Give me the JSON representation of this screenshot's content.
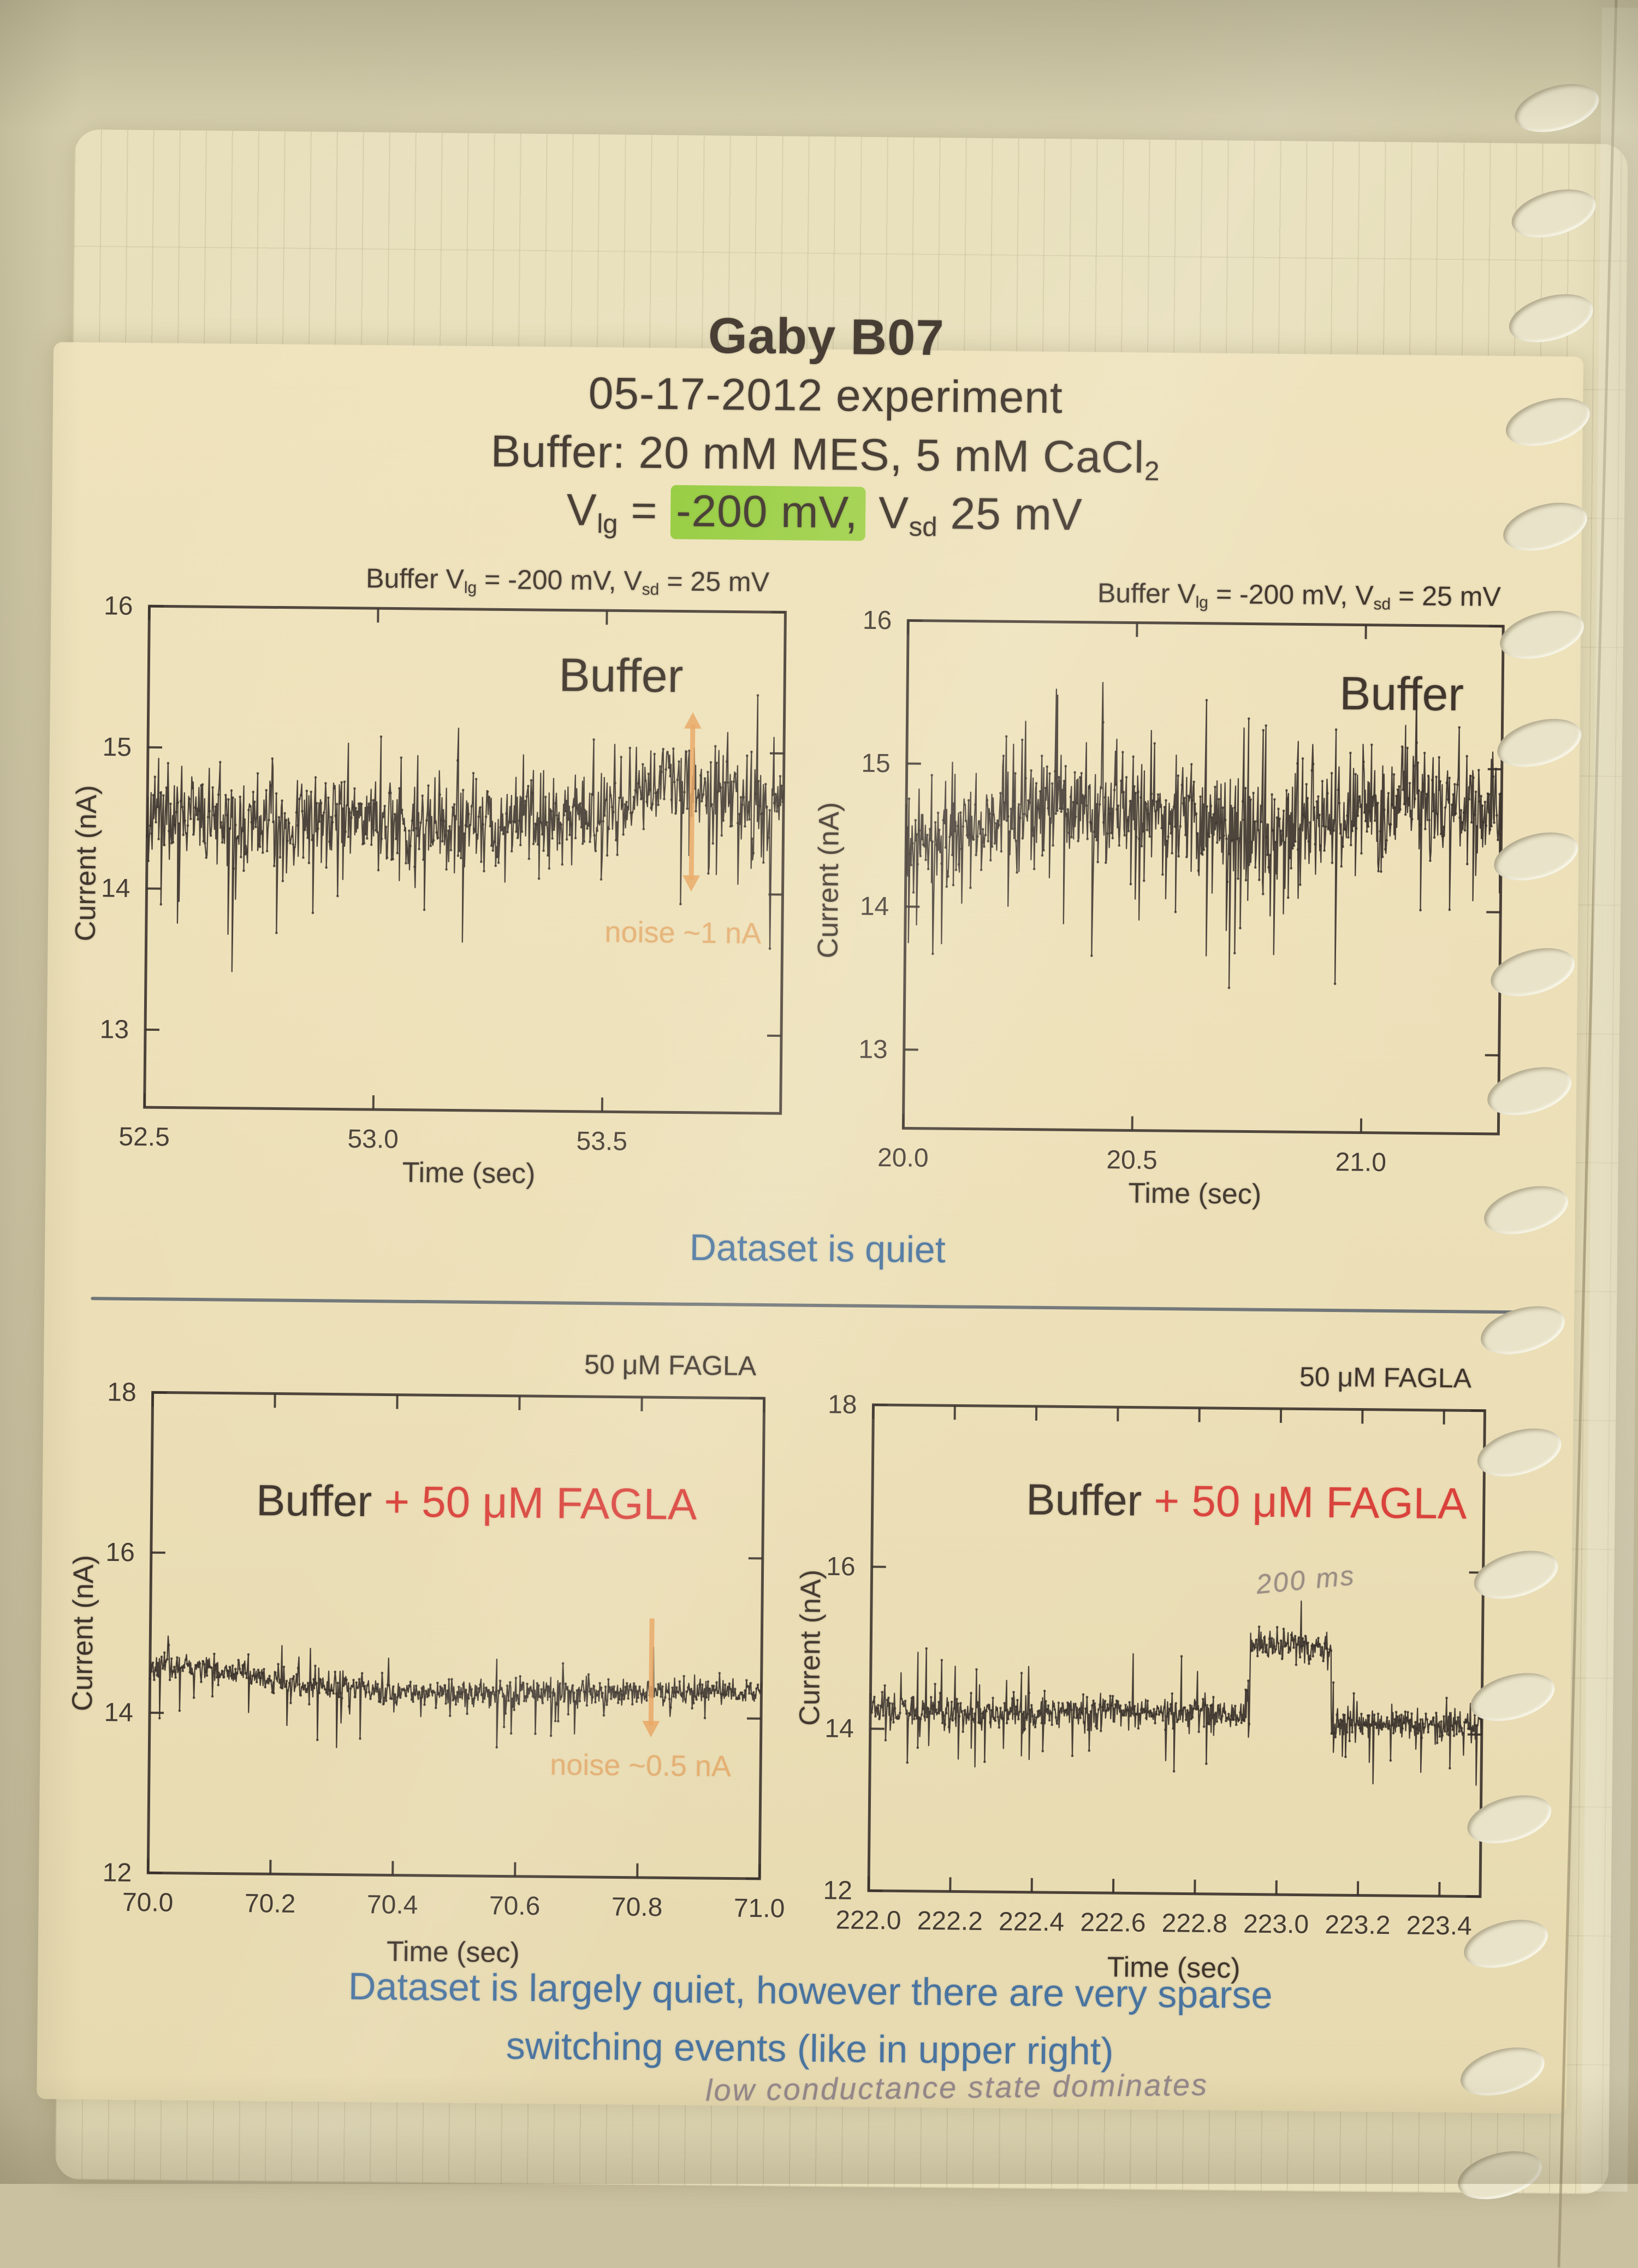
{
  "page": {
    "header": {
      "title": "Gaby B07",
      "line2": "05-17-2012 experiment",
      "line3_prefix": "Buffer: 20 mM MES, 5 mM CaCl",
      "line3_sub": "2",
      "line4": {
        "v1": "V",
        "v1_sub": "lg",
        "eq": " = ",
        "highlight": "-200 mV,",
        "v2": " V",
        "v2_sub": "sd",
        "rest": " 25 mV"
      }
    },
    "middle_note": "Dataset is quiet",
    "bottom_note_line1": "Dataset is largely quiet, however there are very sparse",
    "bottom_note_line2": "switching events (like in upper right)",
    "pencil_note": "low conductance state dominates",
    "colors": {
      "print_ink": "#3f352c",
      "blue_note": "#4a749f",
      "red_label": "#d9423b",
      "green_highlight": "#8fc93f",
      "orange_annotation": "#e2a361",
      "pencil": "#95888b",
      "paper": "#ecdfb7"
    }
  },
  "chart_data": [
    {
      "id": "buffer-trace-left",
      "type": "line",
      "title_segments": [
        "Buffer V",
        "lg",
        " = -200 mV, V",
        "sd",
        " = 25 mV"
      ],
      "inplot_label_dark": "Buffer",
      "inplot_label_red": "",
      "xlabel": "Time (sec)",
      "ylabel": "Current (nA)",
      "xlim": [
        52.5,
        53.89
      ],
      "ylim": [
        12.45,
        16
      ],
      "xticks": [
        52.5,
        53.0,
        53.5
      ],
      "xtick_labels": [
        "52.5",
        "53.0",
        "53.5"
      ],
      "yticks": [
        16,
        15,
        14,
        13
      ],
      "ytick_labels": [
        "16",
        "15",
        "14",
        "13"
      ],
      "grid": false,
      "legend": null,
      "trace": {
        "n": 880,
        "seed": 11,
        "noise_sd": 0.16,
        "spike_prob": 0.06,
        "spike_mag": 0.6,
        "spike_down_bias": 0.75,
        "step": null,
        "baseline_points": [
          [
            52.5,
            14.55
          ],
          [
            52.7,
            14.45
          ],
          [
            52.95,
            14.5
          ],
          [
            53.1,
            14.42
          ],
          [
            53.3,
            14.5
          ],
          [
            53.5,
            14.55
          ],
          [
            53.62,
            14.8
          ],
          [
            53.75,
            14.72
          ],
          [
            53.89,
            14.6
          ]
        ]
      },
      "annotation": {
        "text": "noise ~1 nA",
        "arrow_x": 53.69,
        "arrow_y_top": 15.27,
        "arrow_y_bottom": 14.03,
        "heads": "both"
      }
    },
    {
      "id": "buffer-trace-right",
      "type": "line",
      "title_segments": [
        "Buffer V",
        "lg",
        " = -200 mV, V",
        "sd",
        " = 25 mV"
      ],
      "inplot_label_dark": "Buffer",
      "inplot_label_red": "",
      "xlabel": "Time (sec)",
      "ylabel": "Current (nA)",
      "xlim": [
        20.0,
        21.3
      ],
      "ylim": [
        12.45,
        16
      ],
      "xticks": [
        20.0,
        20.5,
        21.0
      ],
      "xtick_labels": [
        "20.0",
        "20.5",
        "21.0"
      ],
      "yticks": [
        16,
        15,
        14,
        13
      ],
      "ytick_labels": [
        "16",
        "15",
        "14",
        "13"
      ],
      "grid": false,
      "legend": null,
      "trace": {
        "n": 900,
        "seed": 23,
        "noise_sd": 0.18,
        "spike_prob": 0.06,
        "spike_mag": 0.55,
        "spike_down_bias": 0.6,
        "step": null,
        "baseline_points": [
          [
            20.0,
            14.35
          ],
          [
            20.15,
            14.55
          ],
          [
            20.35,
            14.72
          ],
          [
            20.6,
            14.62
          ],
          [
            20.8,
            14.55
          ],
          [
            20.95,
            14.65
          ],
          [
            21.1,
            14.78
          ],
          [
            21.3,
            14.68
          ]
        ]
      },
      "annotation": null
    },
    {
      "id": "fagla-trace-left",
      "type": "line",
      "title_segments": [
        "50 μM FAGLA"
      ],
      "inplot_label_dark": "Buffer ",
      "inplot_label_red": "+ 50 μM FAGLA",
      "xlabel": "Time (sec)",
      "ylabel": "Current (nA)",
      "xlim": [
        70.0,
        71.0
      ],
      "ylim": [
        12,
        18
      ],
      "xticks": [
        70.0,
        70.2,
        70.4,
        70.6,
        70.8,
        71.0
      ],
      "xtick_labels": [
        "70.0",
        "70.2",
        "70.4",
        "70.6",
        "70.8",
        "71.0"
      ],
      "yticks": [
        18,
        16,
        14,
        12
      ],
      "ytick_labels": [
        "18",
        "16",
        "14",
        "12"
      ],
      "grid": false,
      "legend": null,
      "trace": {
        "n": 860,
        "seed": 37,
        "noise_sd": 0.09,
        "spike_prob": 0.05,
        "spike_mag": 0.42,
        "spike_down_bias": 0.8,
        "step": null,
        "baseline_points": [
          [
            70.0,
            14.6
          ],
          [
            70.12,
            14.55
          ],
          [
            70.25,
            14.35
          ],
          [
            70.45,
            14.28
          ],
          [
            70.7,
            14.3
          ],
          [
            71.0,
            14.35
          ]
        ]
      },
      "annotation": {
        "text": "noise ~0.5 nA",
        "arrow_x": 70.82,
        "arrow_y_top": 15.36,
        "arrow_y_bottom": 13.78,
        "heads": "down"
      }
    },
    {
      "id": "fagla-trace-right",
      "type": "line",
      "title_segments": [
        "50 μM FAGLA"
      ],
      "inplot_label_dark": "Buffer ",
      "inplot_label_red": "+ 50 μM FAGLA",
      "xlabel": "Time (sec)",
      "ylabel": "Current (nA)",
      "xlim": [
        222.0,
        223.5
      ],
      "ylim": [
        12,
        18
      ],
      "xticks": [
        222.0,
        222.2,
        222.4,
        222.6,
        222.8,
        223.0,
        223.2,
        223.4
      ],
      "xtick_labels": [
        "222.0",
        "222.2",
        "222.4",
        "222.6",
        "222.8",
        "223.0",
        "223.2",
        "223.4"
      ],
      "yticks": [
        18,
        16,
        14,
        12
      ],
      "ytick_labels": [
        "18",
        "16",
        "14",
        "12"
      ],
      "grid": false,
      "legend": null,
      "trace": {
        "n": 950,
        "seed": 51,
        "noise_sd": 0.1,
        "spike_prob": 0.05,
        "spike_mag": 0.45,
        "spike_down_bias": 0.6,
        "step": {
          "x1": 222.93,
          "x2": 223.13,
          "dy": 0.92
        },
        "baseline_points": [
          [
            222.0,
            14.25
          ],
          [
            222.3,
            14.2
          ],
          [
            222.6,
            14.25
          ],
          [
            222.9,
            14.2
          ],
          [
            223.2,
            14.1
          ],
          [
            223.5,
            14.12
          ]
        ]
      },
      "annotation": null,
      "handwriting": "200 ms"
    }
  ]
}
